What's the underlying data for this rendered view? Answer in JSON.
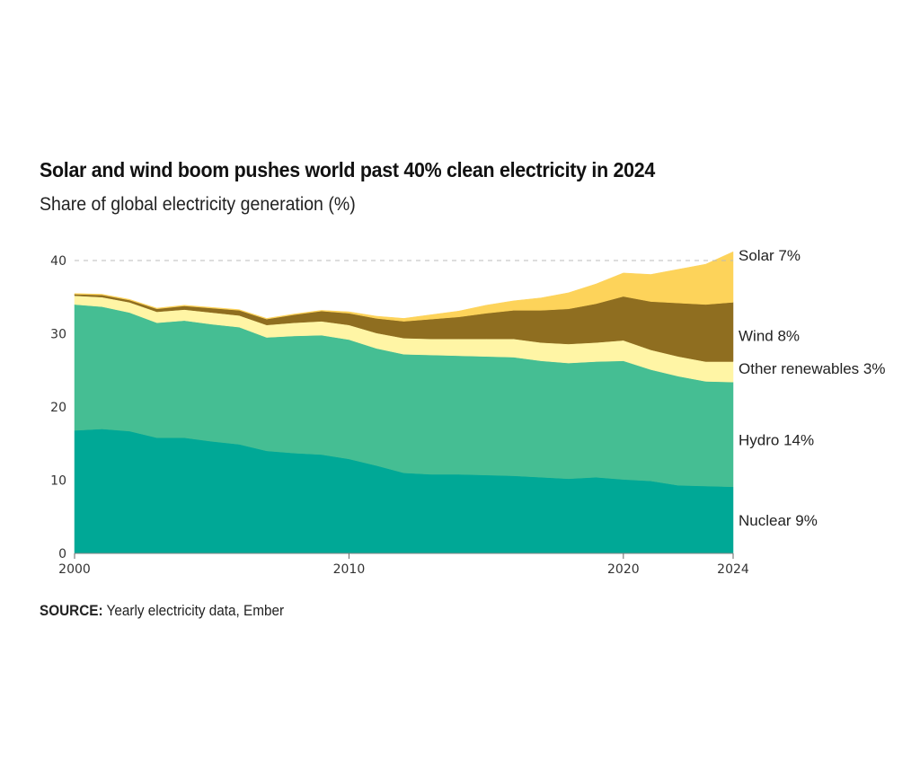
{
  "chart_data": {
    "type": "area",
    "stacked": true,
    "title": "Solar and wind boom pushes world past 40% clean electricity in 2024",
    "subtitle": "Share of global electricity generation (%)",
    "xlabel": "",
    "ylabel": "",
    "xlim": [
      2000,
      2024
    ],
    "ylim": [
      0,
      40
    ],
    "x_ticks": [
      "2000",
      "2010",
      "2020",
      "2024"
    ],
    "x_tick_values": [
      2000,
      2010,
      2020,
      2024
    ],
    "y_ticks": [
      "0",
      "10",
      "20",
      "30",
      "40"
    ],
    "y_tick_values": [
      0,
      10,
      20,
      30,
      40
    ],
    "reference_line": 40,
    "x": [
      2000,
      2001,
      2002,
      2003,
      2004,
      2005,
      2006,
      2007,
      2008,
      2009,
      2010,
      2011,
      2012,
      2013,
      2014,
      2015,
      2016,
      2017,
      2018,
      2019,
      2020,
      2021,
      2022,
      2023,
      2024
    ],
    "series": [
      {
        "name": "Nuclear",
        "label": "Nuclear 9%",
        "color": "#00a896",
        "values": [
          16.8,
          17.0,
          16.7,
          15.8,
          15.8,
          15.3,
          14.9,
          14.0,
          13.7,
          13.5,
          12.9,
          12.0,
          11.0,
          10.8,
          10.8,
          10.7,
          10.6,
          10.4,
          10.2,
          10.4,
          10.1,
          9.9,
          9.3,
          9.2,
          9.1
        ]
      },
      {
        "name": "Hydro",
        "label": "Hydro 14%",
        "color": "#45be93",
        "values": [
          17.2,
          16.7,
          16.2,
          15.7,
          16.0,
          16.0,
          16.0,
          15.5,
          16.0,
          16.3,
          16.3,
          16.0,
          16.2,
          16.3,
          16.2,
          16.2,
          16.2,
          15.9,
          15.8,
          15.8,
          16.2,
          15.2,
          14.9,
          14.3,
          14.3
        ]
      },
      {
        "name": "Other renewables",
        "label": "Other renewables 3%",
        "color": "#fff5a5",
        "values": [
          1.2,
          1.3,
          1.4,
          1.5,
          1.5,
          1.6,
          1.6,
          1.7,
          1.8,
          1.9,
          2.0,
          2.1,
          2.2,
          2.2,
          2.3,
          2.4,
          2.5,
          2.5,
          2.6,
          2.6,
          2.8,
          2.7,
          2.7,
          2.7,
          2.8
        ]
      },
      {
        "name": "Wind",
        "label": "Wind 8%",
        "color": "#8f6e20",
        "values": [
          0.2,
          0.3,
          0.3,
          0.4,
          0.5,
          0.6,
          0.7,
          0.8,
          1.1,
          1.4,
          1.6,
          2.0,
          2.3,
          2.7,
          3.0,
          3.5,
          3.9,
          4.4,
          4.8,
          5.3,
          6.0,
          6.6,
          7.3,
          7.8,
          8.1
        ]
      },
      {
        "name": "Solar",
        "label": "Solar 7%",
        "color": "#fdd35a",
        "values": [
          0.1,
          0.1,
          0.1,
          0.1,
          0.1,
          0.1,
          0.1,
          0.1,
          0.1,
          0.1,
          0.2,
          0.3,
          0.4,
          0.6,
          0.8,
          1.1,
          1.3,
          1.7,
          2.2,
          2.7,
          3.2,
          3.7,
          4.6,
          5.5,
          6.9
        ]
      }
    ],
    "legend": "direct labels at right end",
    "source_label": "SOURCE:",
    "source_text": "Yearly electricity data, Ember"
  }
}
